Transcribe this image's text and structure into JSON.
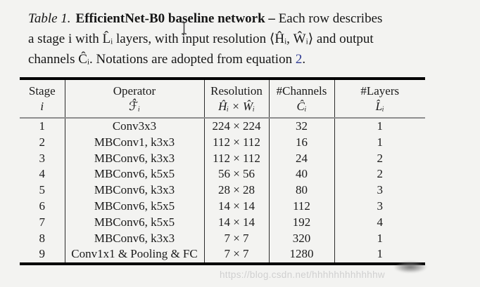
{
  "page": {
    "background": "#f3f3f1",
    "text_color": "#141414",
    "link_color": "#2e3a93"
  },
  "caption": {
    "label": "Table 1.",
    "title": "EfficientNet-B0 baseline network –",
    "line1_rest": " Each row describes",
    "line2": "a stage i with L̂ᵢ layers, with input resolution ⟨Ĥᵢ, Ŵᵢ⟩ and output",
    "line3_prefix": "channels Ĉᵢ. Notations are adopted from equation ",
    "line3_link": "2",
    "line3_suffix": "."
  },
  "table": {
    "columns": [
      {
        "name": "Stage",
        "symbol": "i"
      },
      {
        "name": "Operator",
        "symbol": "ℱ̂ᵢ"
      },
      {
        "name": "Resolution",
        "symbol": "Ĥᵢ × Ŵᵢ"
      },
      {
        "name": "#Channels",
        "symbol": "Ĉᵢ"
      },
      {
        "name": "#Layers",
        "symbol": "L̂ᵢ"
      }
    ],
    "rows": [
      [
        "1",
        "Conv3x3",
        "224 × 224",
        "32",
        "1"
      ],
      [
        "2",
        "MBConv1, k3x3",
        "112 × 112",
        "16",
        "1"
      ],
      [
        "3",
        "MBConv6, k3x3",
        "112 × 112",
        "24",
        "2"
      ],
      [
        "4",
        "MBConv6, k5x5",
        "56 × 56",
        "40",
        "2"
      ],
      [
        "5",
        "MBConv6, k3x3",
        "28 × 28",
        "80",
        "3"
      ],
      [
        "6",
        "MBConv6, k5x5",
        "14 × 14",
        "112",
        "3"
      ],
      [
        "7",
        "MBConv6, k5x5",
        "14 × 14",
        "192",
        "4"
      ],
      [
        "8",
        "MBConv6, k3x3",
        "7 × 7",
        "320",
        "1"
      ],
      [
        "9",
        "Conv1x1 & Pooling & FC",
        "7 × 7",
        "1280",
        "1"
      ]
    ]
  },
  "watermark": {
    "text": "https://blog.csdn.net/hhhhhhhhhhhhw"
  }
}
